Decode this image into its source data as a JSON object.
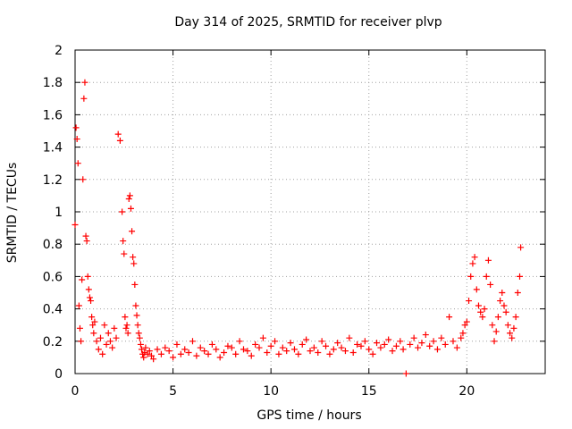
{
  "chart_data": {
    "type": "scatter",
    "title": "Day 314 of 2025, SRMTID for receiver plvp",
    "xlabel": "GPS time / hours",
    "ylabel": "SRMTID / TECUs",
    "xlim": [
      0,
      24
    ],
    "ylim": [
      0,
      2
    ],
    "xticks": [
      0,
      5,
      10,
      15,
      20
    ],
    "xtick_labels": [
      "0",
      "5",
      "10",
      "15",
      "20"
    ],
    "yticks": [
      0,
      0.2,
      0.4,
      0.6,
      0.8,
      1,
      1.2,
      1.4,
      1.6,
      1.8,
      2
    ],
    "ytick_labels": [
      "0",
      "0.2",
      "0.4",
      "0.6",
      "0.8",
      "1",
      "1.2",
      "1.4",
      "1.6",
      "1.8",
      "2"
    ],
    "grid": true,
    "marker": "+",
    "series": [
      {
        "name": "SRMTID",
        "color": "#ff0000",
        "x": [
          0.0,
          0.05,
          0.1,
          0.15,
          0.2,
          0.25,
          0.3,
          0.35,
          0.4,
          0.45,
          0.5,
          0.55,
          0.6,
          0.65,
          0.7,
          0.75,
          0.8,
          0.85,
          0.9,
          0.95,
          1.0,
          1.1,
          1.2,
          1.3,
          1.4,
          1.5,
          1.6,
          1.7,
          1.8,
          1.9,
          2.0,
          2.1,
          2.2,
          2.3,
          2.4,
          2.45,
          2.5,
          2.55,
          2.6,
          2.65,
          2.7,
          2.75,
          2.8,
          2.85,
          2.9,
          2.95,
          3.0,
          3.05,
          3.1,
          3.15,
          3.2,
          3.25,
          3.3,
          3.35,
          3.4,
          3.45,
          3.5,
          3.55,
          3.6,
          3.7,
          3.8,
          3.9,
          4.0,
          4.2,
          4.4,
          4.6,
          4.8,
          5.0,
          5.2,
          5.4,
          5.6,
          5.8,
          6.0,
          6.2,
          6.4,
          6.6,
          6.8,
          7.0,
          7.2,
          7.4,
          7.6,
          7.8,
          8.0,
          8.2,
          8.4,
          8.6,
          8.8,
          9.0,
          9.2,
          9.4,
          9.6,
          9.8,
          10.0,
          10.2,
          10.4,
          10.6,
          10.8,
          11.0,
          11.2,
          11.4,
          11.6,
          11.8,
          12.0,
          12.2,
          12.4,
          12.6,
          12.8,
          13.0,
          13.2,
          13.4,
          13.6,
          13.8,
          14.0,
          14.2,
          14.4,
          14.6,
          14.8,
          15.0,
          15.2,
          15.4,
          15.6,
          15.8,
          16.0,
          16.2,
          16.4,
          16.6,
          16.75,
          16.9,
          17.1,
          17.3,
          17.5,
          17.7,
          17.9,
          18.1,
          18.3,
          18.5,
          18.7,
          18.9,
          19.1,
          19.3,
          19.5,
          19.7,
          19.8,
          19.9,
          20.0,
          20.1,
          20.2,
          20.3,
          20.4,
          20.5,
          20.6,
          20.7,
          20.8,
          20.9,
          21.0,
          21.1,
          21.2,
          21.3,
          21.4,
          21.5,
          21.6,
          21.7,
          21.8,
          21.9,
          22.0,
          22.1,
          22.2,
          22.3,
          22.4,
          22.5,
          22.6,
          22.7,
          22.75
        ],
        "y": [
          0.92,
          1.52,
          1.45,
          1.3,
          0.42,
          0.28,
          0.2,
          0.58,
          1.2,
          1.7,
          1.8,
          0.85,
          0.82,
          0.6,
          0.52,
          0.47,
          0.45,
          0.35,
          0.3,
          0.25,
          0.32,
          0.2,
          0.15,
          0.22,
          0.12,
          0.3,
          0.18,
          0.25,
          0.2,
          0.16,
          0.28,
          0.22,
          1.48,
          1.44,
          1.0,
          0.82,
          0.74,
          0.35,
          0.28,
          0.3,
          0.25,
          1.08,
          1.1,
          1.02,
          0.88,
          0.72,
          0.68,
          0.55,
          0.42,
          0.36,
          0.3,
          0.25,
          0.22,
          0.18,
          0.15,
          0.12,
          0.1,
          0.13,
          0.16,
          0.12,
          0.14,
          0.11,
          0.09,
          0.15,
          0.12,
          0.16,
          0.14,
          0.1,
          0.18,
          0.12,
          0.15,
          0.13,
          0.2,
          0.11,
          0.16,
          0.14,
          0.12,
          0.18,
          0.15,
          0.1,
          0.13,
          0.17,
          0.16,
          0.12,
          0.2,
          0.15,
          0.14,
          0.11,
          0.18,
          0.16,
          0.22,
          0.13,
          0.17,
          0.2,
          0.12,
          0.16,
          0.14,
          0.19,
          0.15,
          0.12,
          0.18,
          0.21,
          0.14,
          0.16,
          0.13,
          0.2,
          0.17,
          0.12,
          0.15,
          0.19,
          0.16,
          0.14,
          0.22,
          0.13,
          0.18,
          0.17,
          0.2,
          0.15,
          0.12,
          0.19,
          0.16,
          0.18,
          0.21,
          0.14,
          0.17,
          0.2,
          0.15,
          0.0,
          0.18,
          0.22,
          0.16,
          0.19,
          0.24,
          0.17,
          0.2,
          0.15,
          0.22,
          0.18,
          0.35,
          0.2,
          0.16,
          0.22,
          0.25,
          0.3,
          0.32,
          0.45,
          0.6,
          0.68,
          0.72,
          0.52,
          0.42,
          0.38,
          0.35,
          0.4,
          0.6,
          0.7,
          0.55,
          0.3,
          0.2,
          0.26,
          0.35,
          0.45,
          0.5,
          0.42,
          0.38,
          0.3,
          0.25,
          0.22,
          0.28,
          0.35,
          0.5,
          0.6,
          0.78
        ]
      }
    ]
  }
}
